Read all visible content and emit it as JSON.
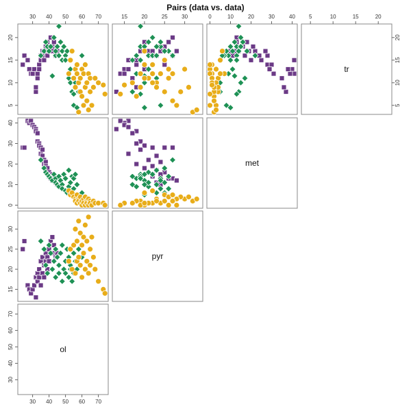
{
  "chart_data": {
    "type": "scatter",
    "title": "Pairs (data vs. data)",
    "layout": "pairs matrix, upper-left triangle, variable names on anti-diagonal",
    "grid": false,
    "variables": [
      "ol",
      "pyr",
      "met",
      "tr"
    ],
    "row_order": [
      "tr",
      "met",
      "pyr",
      "ol"
    ],
    "ranges": {
      "ol": [
        21,
        76
      ],
      "pyr": [
        12,
        34.5
      ],
      "met": [
        -1.5,
        42.5
      ],
      "tr": [
        3,
        23
      ]
    },
    "ticks": {
      "ol": [
        30,
        40,
        50,
        60,
        70
      ],
      "pyr": [
        15,
        20,
        25,
        30
      ],
      "met": [
        0,
        10,
        20,
        30,
        40
      ],
      "tr": [
        5,
        10,
        15,
        20
      ]
    },
    "groups": [
      {
        "marker": "square",
        "color": "#6b3a86",
        "points": [
          [
            24,
            25,
            28,
            14
          ],
          [
            25,
            27,
            28,
            16
          ],
          [
            27,
            16,
            41,
            15
          ],
          [
            28,
            15,
            40,
            13
          ],
          [
            29,
            14,
            41,
            12
          ],
          [
            30,
            15,
            39,
            12
          ],
          [
            31,
            16,
            38,
            13
          ],
          [
            32,
            13,
            37,
            8
          ],
          [
            32,
            18,
            36,
            9
          ],
          [
            33,
            17,
            35,
            11
          ],
          [
            33,
            19,
            31,
            12
          ],
          [
            34,
            18,
            30,
            14
          ],
          [
            34,
            20,
            29,
            13
          ],
          [
            35,
            22,
            28,
            16
          ],
          [
            35,
            16,
            25,
            15
          ],
          [
            36,
            19,
            27,
            17
          ],
          [
            36,
            23,
            24,
            16
          ],
          [
            37,
            21,
            22,
            17
          ],
          [
            37,
            18,
            20,
            15
          ],
          [
            38,
            24,
            21,
            18
          ],
          [
            38,
            22,
            19,
            17
          ],
          [
            39,
            23,
            17,
            16
          ],
          [
            39,
            20,
            18,
            19
          ],
          [
            40,
            25,
            16,
            18
          ],
          [
            40,
            22,
            14,
            17
          ],
          [
            41,
            27,
            13,
            20
          ],
          [
            42,
            24,
            15,
            18
          ],
          [
            42,
            28,
            12,
            17
          ],
          [
            43,
            26,
            13,
            19
          ],
          [
            44,
            23,
            11,
            16
          ],
          [
            45,
            24,
            10,
            17
          ]
        ]
      },
      {
        "marker": "diamond",
        "color": "#1e9155",
        "points": [
          [
            35,
            27,
            22,
            16
          ],
          [
            37,
            25,
            18,
            17
          ],
          [
            38,
            21,
            16,
            19
          ],
          [
            39,
            19,
            15,
            18
          ],
          [
            40,
            26,
            14,
            17
          ],
          [
            41,
            24,
            13,
            18
          ],
          [
            42,
            20,
            12,
            11.5
          ],
          [
            43,
            22,
            15,
            20
          ],
          [
            44,
            18,
            13,
            16
          ],
          [
            44,
            25,
            11,
            17
          ],
          [
            45,
            23,
            10,
            18
          ],
          [
            46,
            19,
            14,
            22.5
          ],
          [
            46,
            21,
            9,
            16
          ],
          [
            47,
            24,
            12,
            19
          ],
          [
            48,
            17,
            10,
            15
          ],
          [
            48,
            26,
            8,
            17
          ],
          [
            49,
            20,
            15,
            18
          ],
          [
            50,
            22,
            7,
            16
          ],
          [
            50,
            19,
            13,
            15
          ],
          [
            51,
            25,
            6,
            17
          ],
          [
            52,
            18,
            9,
            12
          ],
          [
            52,
            23,
            17,
            11
          ],
          [
            53,
            20,
            5,
            10
          ],
          [
            53,
            21,
            11,
            13
          ],
          [
            54,
            17,
            14,
            8
          ],
          [
            55,
            24,
            8,
            5
          ],
          [
            55,
            19,
            13,
            7.5
          ],
          [
            56,
            22,
            15,
            10
          ],
          [
            57,
            20,
            10,
            4.5
          ],
          [
            58,
            25,
            5,
            8
          ],
          [
            60,
            23,
            6,
            16
          ]
        ]
      },
      {
        "marker": "circle",
        "color": "#e8ad1a",
        "points": [
          [
            52,
            22,
            7,
            12
          ],
          [
            53,
            25,
            5,
            15
          ],
          [
            54,
            20,
            6,
            17
          ],
          [
            55,
            26,
            4,
            11
          ],
          [
            56,
            30,
            3,
            13
          ],
          [
            56,
            19,
            2,
            9
          ],
          [
            57,
            27,
            5,
            12
          ],
          [
            57,
            22,
            1,
            14
          ],
          [
            58,
            23,
            3,
            10
          ],
          [
            58,
            32,
            2,
            3.5
          ],
          [
            59,
            29,
            4,
            8
          ],
          [
            59,
            21,
            1,
            11
          ],
          [
            60,
            26,
            0,
            13
          ],
          [
            60,
            18,
            2,
            7
          ],
          [
            61,
            28,
            3,
            5
          ],
          [
            61,
            24,
            1,
            12
          ],
          [
            62,
            31,
            4,
            9
          ],
          [
            62,
            20,
            0,
            14
          ],
          [
            63,
            27,
            2,
            6
          ],
          [
            63,
            22,
            1,
            10
          ],
          [
            64,
            33,
            3,
            4
          ],
          [
            64,
            19,
            0,
            12
          ],
          [
            65,
            25,
            2,
            8
          ],
          [
            65,
            21,
            1,
            11
          ],
          [
            66,
            28,
            0,
            5
          ],
          [
            67,
            23,
            2,
            9
          ],
          [
            68,
            20,
            1,
            11
          ],
          [
            70,
            17,
            1,
            10
          ],
          [
            73,
            15,
            1,
            9.5
          ],
          [
            74,
            14,
            0,
            7.5
          ]
        ]
      }
    ]
  }
}
